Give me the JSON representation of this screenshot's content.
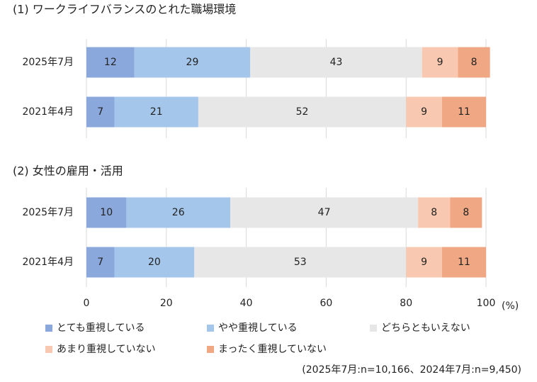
{
  "chart_data": [
    {
      "type": "bar",
      "orientation": "horizontal",
      "stacked": true,
      "title": "(1) ワークライフバランスのとれた職場環境",
      "categories": [
        "2025年7月",
        "2021年4月"
      ],
      "series": [
        {
          "name": "とても重視している",
          "color": "#8aa8dc",
          "values": [
            12,
            7
          ]
        },
        {
          "name": "やや重視している",
          "color": "#a4c6ea",
          "values": [
            29,
            21
          ]
        },
        {
          "name": "どちらともいえない",
          "color": "#e7e7e7",
          "values": [
            43,
            52
          ]
        },
        {
          "name": "あまり重視していない",
          "color": "#f8c8b0",
          "values": [
            9,
            9
          ]
        },
        {
          "name": "まったく重視していない",
          "color": "#f0a783",
          "values": [
            8,
            11
          ]
        }
      ],
      "xlim": [
        0,
        100
      ],
      "xticks": [
        0,
        20,
        40,
        60,
        80,
        100
      ],
      "grid": true
    },
    {
      "type": "bar",
      "orientation": "horizontal",
      "stacked": true,
      "title": "(2) 女性の雇用・活用",
      "categories": [
        "2025年7月",
        "2021年4月"
      ],
      "series": [
        {
          "values": [
            10,
            7
          ]
        },
        {
          "values": [
            26,
            20
          ]
        },
        {
          "values": [
            47,
            53
          ]
        },
        {
          "values": [
            8,
            9
          ]
        },
        {
          "values": [
            8,
            11
          ]
        }
      ],
      "xlim": [
        0,
        100
      ],
      "xticks": [
        0,
        20,
        40,
        60,
        80,
        100
      ],
      "xlabel": "(%)",
      "grid": true,
      "note": "(2025年7月:n=10,166、2024年7月:n=9,450)"
    }
  ]
}
